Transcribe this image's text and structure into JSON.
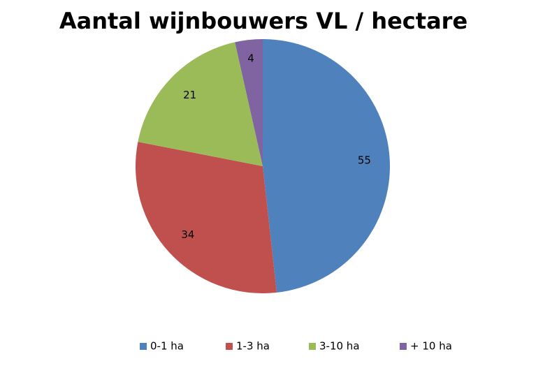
{
  "chart_data": {
    "type": "pie",
    "title": "Aantal wijnbouwers VL / hectare",
    "categories": [
      "0-1 ha",
      "1-3 ha",
      "3-10 ha",
      "+ 10 ha"
    ],
    "values": [
      55,
      34,
      21,
      4
    ],
    "colors": [
      "#4f81bd",
      "#c0504d",
      "#9bbb59",
      "#8064a2"
    ],
    "legend": "bottom"
  }
}
